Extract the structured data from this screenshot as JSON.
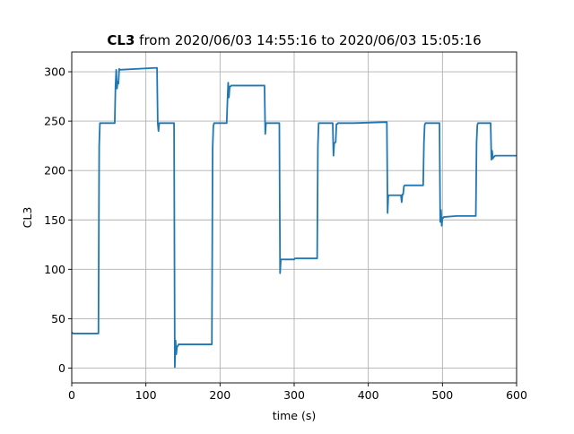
{
  "chart_data": {
    "type": "line",
    "title_bold": "CL3",
    "title_rest": " from 2020/06/03 14:55:16 to 2020/06/03 15:05:16",
    "xlabel": "time (s)",
    "ylabel": "CL3",
    "xlim": [
      0,
      600
    ],
    "ylim": [
      -15,
      320
    ],
    "grid": true,
    "line_color": "#1f77b4",
    "xticks": [
      0,
      100,
      200,
      300,
      400,
      500,
      600
    ],
    "yticks": [
      0,
      50,
      100,
      150,
      200,
      250,
      300
    ],
    "series": [
      {
        "x": [
          0,
          2,
          36,
          37,
          38,
          39,
          40,
          58,
          59,
          60,
          61,
          62,
          63,
          64,
          65,
          115,
          116,
          117,
          118,
          119,
          138,
          139,
          140,
          141,
          142,
          143,
          144,
          145,
          189,
          190,
          191,
          192,
          209,
          210,
          211,
          212,
          213,
          214,
          215,
          260,
          261,
          262,
          263,
          280,
          281,
          282,
          283,
          300,
          301,
          331,
          332,
          333,
          334,
          352,
          353,
          354,
          355,
          356,
          357,
          358,
          359,
          380,
          424,
          425,
          426,
          427,
          443,
          444,
          445,
          446,
          447,
          448,
          449,
          474,
          475,
          476,
          477,
          478,
          496,
          497,
          498,
          499,
          500,
          501,
          502,
          503,
          519,
          520,
          545,
          546,
          547,
          548,
          565,
          566,
          567,
          568,
          569,
          570,
          571,
          572,
          600
        ],
        "y": [
          36,
          35,
          35,
          225,
          248,
          248,
          248,
          248,
          285,
          302,
          283,
          290,
          288,
          303,
          302,
          304,
          248,
          240,
          248,
          248,
          248,
          1,
          28,
          14,
          22,
          22,
          24,
          24,
          24,
          222,
          245,
          248,
          248,
          270,
          289,
          274,
          285,
          285,
          286,
          286,
          237,
          248,
          248,
          248,
          96,
          110,
          110,
          110,
          111,
          111,
          225,
          248,
          248,
          248,
          215,
          228,
          228,
          229,
          247,
          247,
          248,
          248,
          249,
          249,
          157,
          175,
          175,
          175,
          168,
          176,
          176,
          184,
          185,
          185,
          228,
          246,
          248,
          248,
          248,
          148,
          160,
          144,
          152,
          152,
          153,
          153,
          154,
          154,
          154,
          228,
          246,
          248,
          248,
          211,
          220,
          212,
          214,
          214,
          215,
          215,
          215
        ]
      }
    ]
  }
}
